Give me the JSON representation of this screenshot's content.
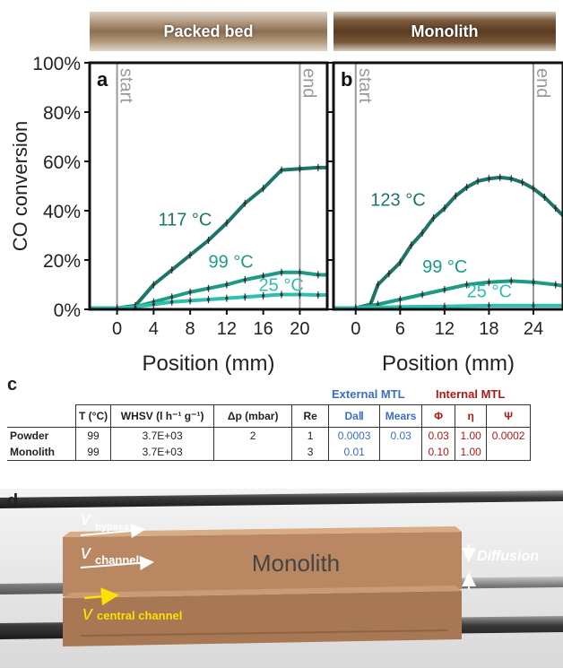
{
  "photos": {
    "packed_bed": "Packed bed",
    "monolith": "Monolith"
  },
  "chart_data": [
    {
      "type": "line",
      "panel": "a",
      "xlabel": "Position (mm)",
      "ylabel": "CO conversion",
      "xlim": [
        -3,
        23
      ],
      "ylim": [
        0,
        100
      ],
      "xticks": [
        0,
        4,
        8,
        12,
        16,
        20
      ],
      "yticks": [
        0,
        20,
        40,
        60,
        80,
        100
      ],
      "ytick_labels": [
        "0%",
        "20%",
        "40%",
        "60%",
        "80%",
        "100%"
      ],
      "vlines": [
        {
          "x": 0,
          "label": "start"
        },
        {
          "x": 20,
          "label": "end"
        }
      ],
      "series": [
        {
          "name": "117 °C",
          "color": "#1c7568",
          "width": 4,
          "label_at": [
            4.5,
            34
          ],
          "x": [
            -3,
            -2,
            0,
            2,
            4,
            6,
            8,
            10,
            12,
            14,
            16,
            18,
            20,
            22,
            23
          ],
          "y": [
            0.5,
            0.5,
            0.5,
            1.5,
            10,
            16,
            22,
            28,
            35,
            43,
            49,
            56.5,
            57,
            57.5,
            57.5
          ]
        },
        {
          "name": "99 °C",
          "color": "#1f9a87",
          "width": 4,
          "label_at": [
            10,
            17
          ],
          "x": [
            -3,
            0,
            2,
            4,
            6,
            8,
            10,
            12,
            14,
            16,
            18,
            20,
            22,
            23
          ],
          "y": [
            0.5,
            0.5,
            1,
            3,
            5,
            7,
            8.5,
            10,
            12,
            13.5,
            15,
            15,
            14,
            14
          ]
        },
        {
          "name": "25 °C",
          "color": "#2fbfae",
          "width": 4,
          "label_at": [
            15.5,
            7.5
          ],
          "x": [
            -3,
            0,
            2,
            4,
            6,
            8,
            10,
            12,
            14,
            16,
            18,
            20,
            22,
            23
          ],
          "y": [
            0.5,
            0.5,
            1,
            2,
            3,
            3.5,
            4,
            4.5,
            5,
            5.5,
            6,
            6,
            5.8,
            5.8
          ]
        }
      ]
    },
    {
      "type": "line",
      "panel": "b",
      "xlabel": "Position (mm)",
      "ylabel": "",
      "xlim": [
        -3,
        28
      ],
      "ylim": [
        0,
        100
      ],
      "xticks": [
        0,
        6,
        12,
        18,
        24
      ],
      "yticks": [
        0,
        20,
        40,
        60,
        80,
        100
      ],
      "vlines": [
        {
          "x": 0,
          "label": "start"
        },
        {
          "x": 24,
          "label": "end"
        }
      ],
      "series": [
        {
          "name": "123 °C",
          "color": "#1c7568",
          "width": 4,
          "label_at": [
            2,
            42
          ],
          "x": [
            -3,
            0,
            2,
            3,
            4.5,
            6,
            7.5,
            9,
            10.5,
            12,
            13.5,
            15,
            16.5,
            18,
            19.5,
            21,
            22.5,
            24,
            25.5,
            27,
            28
          ],
          "y": [
            0.5,
            0.5,
            2,
            10,
            14.5,
            19,
            26,
            31,
            37,
            41,
            46,
            49.5,
            52,
            53,
            53.5,
            53,
            51.5,
            49,
            45.5,
            41,
            38
          ]
        },
        {
          "name": "99 °C",
          "color": "#1f9a87",
          "width": 4,
          "label_at": [
            9,
            15
          ],
          "x": [
            -3,
            0,
            3,
            6,
            9,
            12,
            15,
            18,
            21,
            24,
            27,
            28
          ],
          "y": [
            0.5,
            0.5,
            2,
            4,
            6,
            8,
            10,
            11,
            11.5,
            11,
            10,
            9.5
          ]
        },
        {
          "name": "25 °C",
          "color": "#2fbfae",
          "width": 4,
          "label_at": [
            15,
            5
          ],
          "x": [
            -3,
            0,
            6,
            12,
            18,
            24,
            28
          ],
          "y": [
            0.5,
            0.5,
            1,
            1.2,
            1.5,
            1.5,
            1.5
          ]
        }
      ]
    }
  ],
  "table": {
    "panel_label": "c",
    "external_label": "External MTL",
    "internal_label": "Internal MTL",
    "headers": [
      "T (°C)",
      "WHSV (l h⁻¹ g⁻¹)",
      "Δp (mbar)",
      "Re",
      "DaⅡ",
      "Mears",
      "Φ",
      "η",
      "Ψ"
    ],
    "rows": [
      [
        "Powder",
        "99",
        "3.7E+03",
        "2",
        "1",
        "0.0003",
        "0.03",
        "0.03",
        "1.00",
        "0.0002"
      ],
      [
        "Monolith",
        "99",
        "3.7E+03",
        "",
        "3",
        "0.01",
        "",
        "0.10",
        "1.00",
        ""
      ]
    ]
  },
  "panel_d": {
    "panel_label": "d",
    "monolith_label": "Monolith",
    "bypass_label": "bypass",
    "channel_label": "channel",
    "central_label": "central channel",
    "vector_symbol": "v",
    "diffusion_label": "Diffusion"
  }
}
